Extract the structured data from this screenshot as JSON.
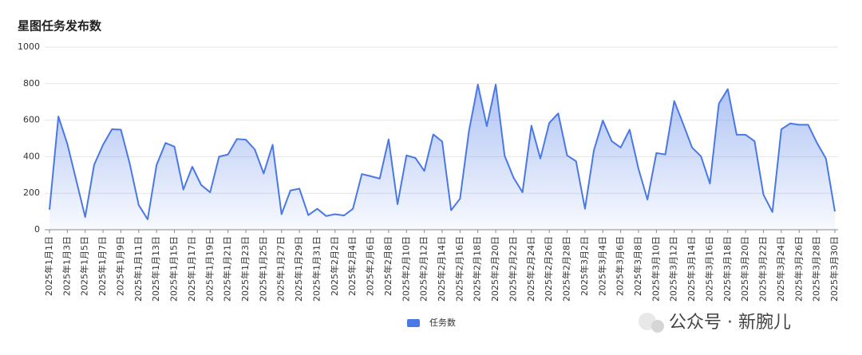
{
  "chart_data": {
    "type": "area",
    "title": "星图任务发布数",
    "categories": [
      "2025年1月1日",
      null,
      "2025年1月3日",
      null,
      "2025年1月5日",
      null,
      "2025年1月7日",
      null,
      "2025年1月9日",
      null,
      "2025年1月11日",
      null,
      "2025年1月13日",
      null,
      "2025年1月15日",
      null,
      "2025年1月17日",
      null,
      "2025年1月19日",
      null,
      "2025年1月21日",
      null,
      "2025年1月23日",
      null,
      "2025年1月25日",
      null,
      "2025年1月27日",
      null,
      "2025年1月29日",
      null,
      "2025年1月31日",
      null,
      "2025年2月2日",
      null,
      "2025年2月4日",
      null,
      "2025年2月6日",
      null,
      "2025年2月8日",
      null,
      "2025年2月10日",
      null,
      "2025年2月12日",
      null,
      "2025年2月14日",
      null,
      "2025年2月16日",
      null,
      "2025年2月18日",
      null,
      "2025年2月20日",
      null,
      "2025年2月22日",
      null,
      "2025年2月24日",
      null,
      "2025年2月26日",
      null,
      "2025年2月28日",
      null,
      "2025年3月2日",
      null,
      "2025年3月4日",
      null,
      "2025年3月6日",
      null,
      "2025年3月8日",
      null,
      "2025年3月10日",
      null,
      "2025年3月12日",
      null,
      "2025年3月14日",
      null,
      "2025年3月16日",
      null,
      "2025年3月18日",
      null,
      "2025年3月20日",
      null,
      "2025年3月22日",
      null,
      "2025年3月24日",
      null,
      "2025年3月26日",
      null,
      "2025年3月28日",
      null,
      "2025年3月30日"
    ],
    "series": [
      {
        "name": "任务数",
        "color": "#4a78e6",
        "values": [
          110,
          620,
          470,
          270,
          70,
          355,
          465,
          550,
          548,
          360,
          135,
          57,
          355,
          475,
          455,
          220,
          345,
          245,
          205,
          400,
          412,
          497,
          493,
          440,
          308,
          465,
          85,
          215,
          225,
          80,
          115,
          75,
          85,
          78,
          115,
          305,
          293,
          280,
          495,
          140,
          407,
          393,
          322,
          522,
          483,
          107,
          170,
          540,
          795,
          567,
          795,
          405,
          285,
          205,
          570,
          390,
          585,
          637,
          407,
          375,
          115,
          435,
          598,
          485,
          450,
          548,
          333,
          165,
          420,
          412,
          705,
          580,
          450,
          402,
          253,
          690,
          770,
          520,
          520,
          485,
          192,
          97,
          550,
          582,
          575,
          575,
          475,
          390,
          100
        ]
      }
    ],
    "ylim": [
      0,
      1000
    ],
    "yticks": [
      0,
      200,
      400,
      600,
      800,
      1000
    ],
    "grid": true,
    "legend": "bottom"
  },
  "watermark": "公众号 · 新腕儿"
}
